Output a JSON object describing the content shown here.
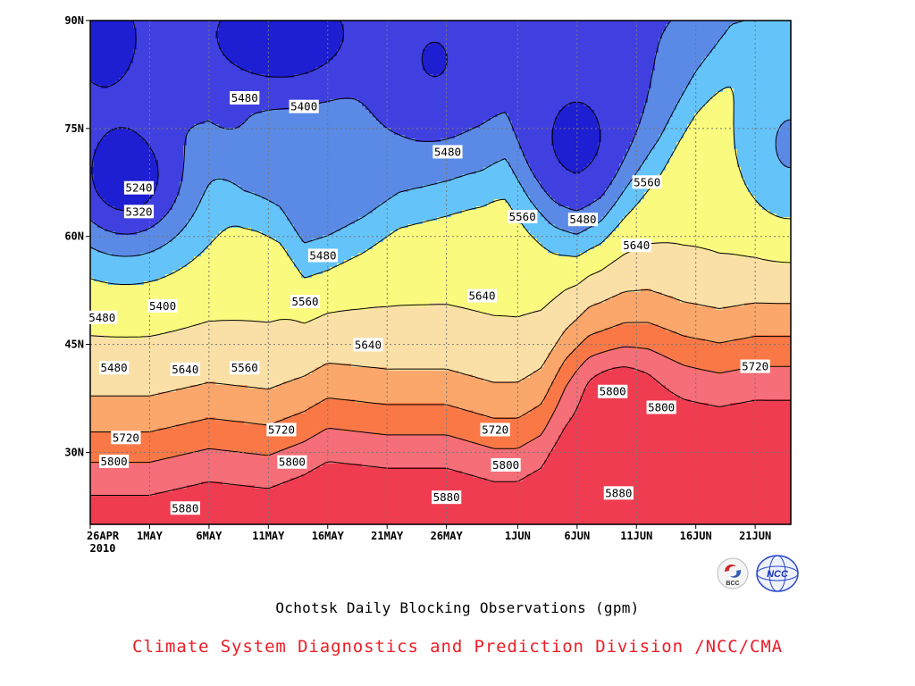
{
  "chart_data": {
    "type": "heatmap",
    "subtype": "filled-contour",
    "ylim": [
      20,
      90
    ],
    "y_ticks": [
      {
        "value": 30,
        "label": "30N"
      },
      {
        "value": 45,
        "label": "45N"
      },
      {
        "value": 60,
        "label": "60N"
      },
      {
        "value": 75,
        "label": "75N"
      },
      {
        "value": 90,
        "label": "90N"
      }
    ],
    "x_ticks": [
      {
        "day": 0,
        "label": "26APR"
      },
      {
        "day": 5,
        "label": "1MAY"
      },
      {
        "day": 10,
        "label": "6MAY"
      },
      {
        "day": 15,
        "label": "11MAY"
      },
      {
        "day": 20,
        "label": "16MAY"
      },
      {
        "day": 25,
        "label": "21MAY"
      },
      {
        "day": 30,
        "label": "26MAY"
      },
      {
        "day": 36,
        "label": "1JUN"
      },
      {
        "day": 41,
        "label": "6JUN"
      },
      {
        "day": 46,
        "label": "11JUN"
      },
      {
        "day": 51,
        "label": "16JUN"
      },
      {
        "day": 56,
        "label": "21JUN"
      }
    ],
    "x_year_label": "2010",
    "xlim_days": [
      0,
      59
    ],
    "contour_levels": [
      5240,
      5320,
      5400,
      5480,
      5560,
      5640,
      5720,
      5800,
      5880
    ],
    "fill_colors": [
      "#1e1ed2",
      "#4040e0",
      "#5a8ae6",
      "#64c4fa",
      "#fafa7e",
      "#fae0a6",
      "#fba66a",
      "#fa7846",
      "#f56e78",
      "#f03c50"
    ],
    "grid": true,
    "contour_labels": [
      {
        "text": "5480",
        "day": 13.0,
        "lat": 79.2
      },
      {
        "text": "5400",
        "day": 18.0,
        "lat": 78.0
      },
      {
        "text": "5480",
        "day": 30.1,
        "lat": 71.7
      },
      {
        "text": "5560",
        "day": 46.9,
        "lat": 67.5
      },
      {
        "text": "5240",
        "day": 4.1,
        "lat": 66.7
      },
      {
        "text": "5320",
        "day": 4.1,
        "lat": 63.4
      },
      {
        "text": "5560",
        "day": 36.4,
        "lat": 62.7
      },
      {
        "text": "5480",
        "day": 41.5,
        "lat": 62.3
      },
      {
        "text": "5640",
        "day": 46.0,
        "lat": 58.7
      },
      {
        "text": "5480",
        "day": 19.6,
        "lat": 57.3
      },
      {
        "text": "5560",
        "day": 18.1,
        "lat": 50.9
      },
      {
        "text": "5400",
        "day": 6.1,
        "lat": 50.3
      },
      {
        "text": "5640",
        "day": 33.0,
        "lat": 51.7
      },
      {
        "text": "5480",
        "day": 1.0,
        "lat": 48.7
      },
      {
        "text": "5640",
        "day": 23.4,
        "lat": 44.9
      },
      {
        "text": "5480",
        "day": 2.0,
        "lat": 41.7
      },
      {
        "text": "5640",
        "day": 8.0,
        "lat": 41.5
      },
      {
        "text": "5560",
        "day": 13.0,
        "lat": 41.7
      },
      {
        "text": "5720",
        "day": 56.0,
        "lat": 41.9
      },
      {
        "text": "5800",
        "day": 44.0,
        "lat": 38.4
      },
      {
        "text": "5800",
        "day": 48.1,
        "lat": 36.2
      },
      {
        "text": "5720",
        "day": 16.1,
        "lat": 33.1
      },
      {
        "text": "5720",
        "day": 34.1,
        "lat": 33.1
      },
      {
        "text": "5720",
        "day": 3.0,
        "lat": 32.0
      },
      {
        "text": "5800",
        "day": 2.0,
        "lat": 28.7
      },
      {
        "text": "5800",
        "day": 17.0,
        "lat": 28.6
      },
      {
        "text": "5800",
        "day": 35.0,
        "lat": 28.2
      },
      {
        "text": "5880",
        "day": 30.0,
        "lat": 23.7
      },
      {
        "text": "5880",
        "day": 44.5,
        "lat": 24.3
      },
      {
        "text": "5880",
        "day": 8.0,
        "lat": 22.2
      }
    ]
  },
  "caption": {
    "title": "Ochotsk Daily Blocking Observations (gpm)",
    "credit": "Climate System Diagnostics and Prediction Division /NCC/CMA",
    "credit_color": "#ee1c25"
  },
  "logos": {
    "bcc_text": "BCC",
    "ncc_text": "NCC"
  }
}
